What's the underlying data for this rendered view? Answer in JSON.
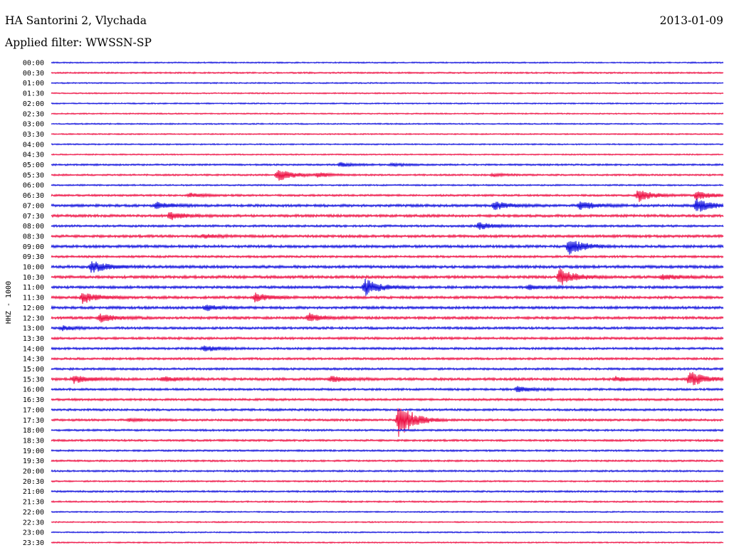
{
  "header": {
    "station": "HA Santorini 2, Vlychada",
    "date": "2013-01-09",
    "filter": "Applied filter: WWSSN-SP"
  },
  "colors": {
    "trace_a": "#1010dd",
    "trace_b": "#ee1144",
    "text": "#000000",
    "background": "#ffffff"
  },
  "chart_data": {
    "type": "line",
    "subtype": "helicorder",
    "ylabel": "HHZ - 1000",
    "line_minutes": 30,
    "row_labels": [
      "00:00",
      "00:30",
      "01:00",
      "01:30",
      "02:00",
      "02:30",
      "03:00",
      "03:30",
      "04:00",
      "04:30",
      "05:00",
      "05:30",
      "06:00",
      "06:30",
      "07:00",
      "07:30",
      "08:00",
      "08:30",
      "09:00",
      "09:30",
      "10:00",
      "10:30",
      "11:00",
      "11:30",
      "12:00",
      "12:30",
      "13:00",
      "13:30",
      "14:00",
      "14:30",
      "15:00",
      "15:30",
      "16:00",
      "16:30",
      "17:00",
      "17:30",
      "18:00",
      "18:30",
      "19:00",
      "19:30",
      "20:00",
      "20:30",
      "21:00",
      "21:30",
      "22:00",
      "22:30",
      "23:00",
      "23:30"
    ],
    "noise_level": [
      0.6,
      0.7,
      0.6,
      0.6,
      0.6,
      0.6,
      0.6,
      0.6,
      0.6,
      0.6,
      0.8,
      0.8,
      0.7,
      0.9,
      1.2,
      1.2,
      1.0,
      1.2,
      1.2,
      1.0,
      1.3,
      1.3,
      1.2,
      1.2,
      1.2,
      1.2,
      1.1,
      1.1,
      1.0,
      1.0,
      1.0,
      1.2,
      1.0,
      1.0,
      1.0,
      1.0,
      0.9,
      0.9,
      0.8,
      0.8,
      0.8,
      0.7,
      0.8,
      0.7,
      0.6,
      0.6,
      0.6,
      0.6
    ],
    "events": [
      {
        "row": 10,
        "minute": 12.9,
        "amp": 3
      },
      {
        "row": 10,
        "minute": 15.2,
        "amp": 2
      },
      {
        "row": 11,
        "minute": 10.1,
        "amp": 9
      },
      {
        "row": 11,
        "minute": 11.9,
        "amp": 3
      },
      {
        "row": 11,
        "minute": 19.7,
        "amp": 2
      },
      {
        "row": 13,
        "minute": 6.2,
        "amp": 3
      },
      {
        "row": 13,
        "minute": 26.2,
        "amp": 9
      },
      {
        "row": 13,
        "minute": 28.8,
        "amp": 7
      },
      {
        "row": 14,
        "minute": 4.7,
        "amp": 4
      },
      {
        "row": 14,
        "minute": 19.8,
        "amp": 6
      },
      {
        "row": 14,
        "minute": 23.6,
        "amp": 6
      },
      {
        "row": 14,
        "minute": 28.8,
        "amp": 10
      },
      {
        "row": 15,
        "minute": 5.3,
        "amp": 5
      },
      {
        "row": 16,
        "minute": 19.1,
        "amp": 5
      },
      {
        "row": 17,
        "minute": 6.8,
        "amp": 3
      },
      {
        "row": 18,
        "minute": 23.1,
        "amp": 12
      },
      {
        "row": 20,
        "minute": 1.8,
        "amp": 9
      },
      {
        "row": 21,
        "minute": 22.7,
        "amp": 12
      },
      {
        "row": 21,
        "minute": 27.3,
        "amp": 4
      },
      {
        "row": 22,
        "minute": 14.0,
        "amp": 12
      },
      {
        "row": 22,
        "minute": 21.3,
        "amp": 3
      },
      {
        "row": 23,
        "minute": 1.4,
        "amp": 8
      },
      {
        "row": 23,
        "minute": 9.1,
        "amp": 6
      },
      {
        "row": 24,
        "minute": 6.9,
        "amp": 4
      },
      {
        "row": 25,
        "minute": 2.2,
        "amp": 6
      },
      {
        "row": 25,
        "minute": 11.5,
        "amp": 6
      },
      {
        "row": 26,
        "minute": 0.5,
        "amp": 3
      },
      {
        "row": 28,
        "minute": 6.8,
        "amp": 4
      },
      {
        "row": 31,
        "minute": 1.0,
        "amp": 6
      },
      {
        "row": 31,
        "minute": 5.0,
        "amp": 4
      },
      {
        "row": 31,
        "minute": 12.5,
        "amp": 4
      },
      {
        "row": 31,
        "minute": 25.2,
        "amp": 3
      },
      {
        "row": 31,
        "minute": 28.5,
        "amp": 11
      },
      {
        "row": 32,
        "minute": 20.8,
        "amp": 4
      },
      {
        "row": 35,
        "minute": 15.5,
        "amp": 26
      },
      {
        "row": 35,
        "minute": 3.5,
        "amp": 2
      }
    ]
  }
}
